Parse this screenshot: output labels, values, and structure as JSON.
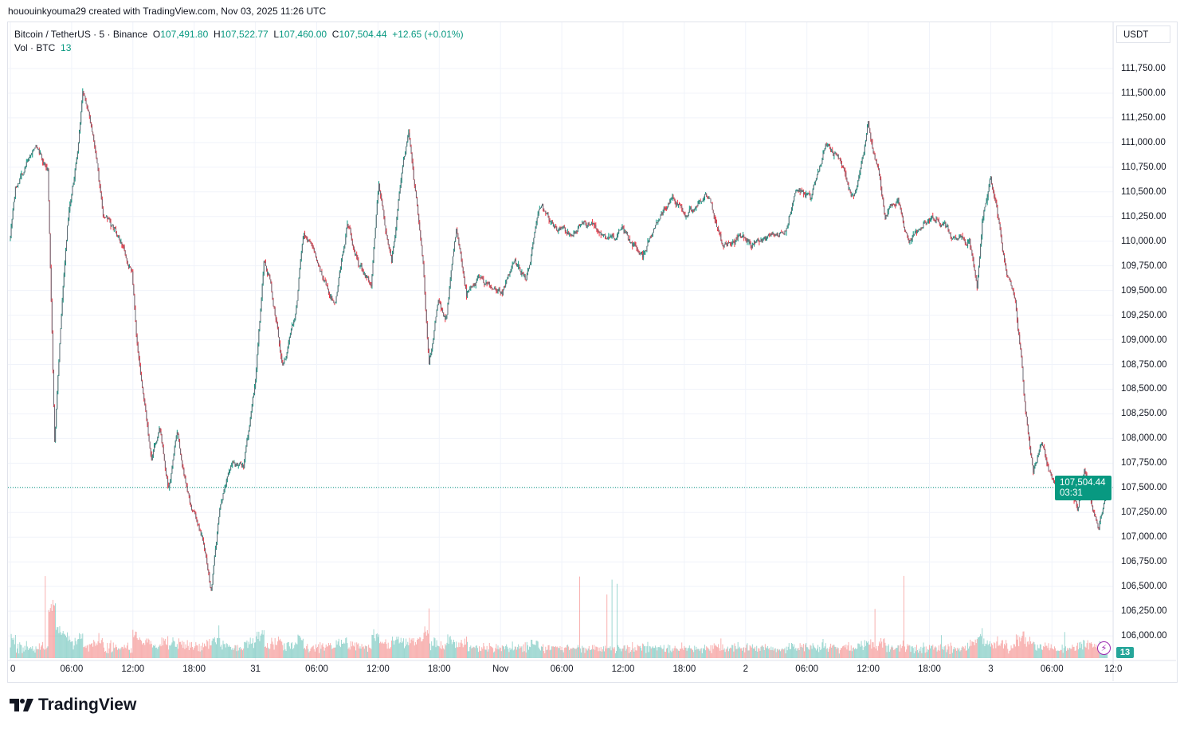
{
  "credit": "hououinkyouma29 created with TradingView.com, Nov 03, 2025 11:26 UTC",
  "legend": {
    "symbol": "Bitcoin / TetherUS · 5 · Binance",
    "o_label": "O",
    "o": "107,491.80",
    "h_label": "H",
    "h": "107,522.77",
    "l_label": "L",
    "l": "107,460.00",
    "c_label": "C",
    "c": "107,504.44",
    "change": "+12.65 (+0.01%)",
    "vol_label": "Vol · BTC",
    "vol": "13"
  },
  "currency": "USDT",
  "last_price": "107,504.44",
  "countdown": "03:31",
  "volume_badge": "13",
  "brand": "TradingView",
  "colors": {
    "up": "#089981",
    "down": "#f23645",
    "body": "#6a6d78",
    "price_line": "#089981",
    "vol_up": "#26a69a",
    "vol_down": "#ef5350"
  },
  "chart_data": {
    "type": "candlestick",
    "interval": "5",
    "ylim": [
      105850,
      111900
    ],
    "last": 107504.44,
    "grid": true,
    "y_ticks": [
      "111,750.00",
      "111,500.00",
      "111,250.00",
      "111,000.00",
      "110,750.00",
      "110,500.00",
      "110,250.00",
      "110,000.00",
      "109,750.00",
      "109,500.00",
      "109,250.00",
      "109,000.00",
      "108,750.00",
      "108,500.00",
      "108,250.00",
      "108,000.00",
      "107,750.00",
      "107,500.00",
      "107,250.00",
      "107,000.00",
      "106,750.00",
      "106,500.00",
      "106,250.00",
      "106,000.00"
    ],
    "x_ticks": [
      "0",
      "06:00",
      "12:00",
      "18:00",
      "31",
      "06:00",
      "12:00",
      "18:00",
      "Nov",
      "06:00",
      "12:00",
      "18:00",
      "2",
      "06:00",
      "12:00",
      "18:00",
      "3",
      "06:00",
      "12:0"
    ],
    "price_path": [
      [
        "10-30 00:00",
        110020
      ],
      [
        "10-30 00:30",
        110506
      ],
      [
        "10-30 02:30",
        110950
      ],
      [
        "10-30 03:40",
        110750
      ],
      [
        "10-30 04:20",
        108000
      ],
      [
        "10-30 04:50",
        108970
      ],
      [
        "10-30 05:35",
        110185
      ],
      [
        "10-30 06:35",
        110910
      ],
      [
        "10-30 07:05",
        111560
      ],
      [
        "10-30 07:40",
        111315
      ],
      [
        "10-30 08:25",
        110830
      ],
      [
        "10-30 09:05",
        110265
      ],
      [
        "10-30 10:40",
        110020
      ],
      [
        "10-30 11:55",
        109700
      ],
      [
        "10-30 12:20",
        109050
      ],
      [
        "10-30 13:00",
        108490
      ],
      [
        "10-30 13:50",
        107760
      ],
      [
        "10-30 14:35",
        108165
      ],
      [
        "10-30 15:30",
        107520
      ],
      [
        "10-30 16:20",
        108085
      ],
      [
        "10-30 17:05",
        107600
      ],
      [
        "10-30 17:40",
        107275
      ],
      [
        "10-30 18:55",
        106955
      ],
      [
        "10-30 19:40",
        106430
      ],
      [
        "10-30 20:30",
        107275
      ],
      [
        "10-30 21:35",
        107760
      ],
      [
        "10-30 22:50",
        107680
      ],
      [
        "10-31 00:00",
        108570
      ],
      [
        "10-31 00:50",
        109780
      ],
      [
        "10-31 01:30",
        109620
      ],
      [
        "10-31 02:40",
        108730
      ],
      [
        "10-31 03:55",
        109215
      ],
      [
        "10-31 04:40",
        110100
      ],
      [
        "10-31 06:10",
        109700
      ],
      [
        "10-31 07:50",
        109375
      ],
      [
        "10-31 09:00",
        110185
      ],
      [
        "10-31 10:05",
        109780
      ],
      [
        "10-31 11:20",
        109540
      ],
      [
        "10-31 12:05",
        110590
      ],
      [
        "10-31 13:20",
        109780
      ],
      [
        "10-31 14:00",
        110425
      ],
      [
        "10-31 15:00",
        111070
      ],
      [
        "10-31 15:35",
        110506
      ],
      [
        "10-31 16:25",
        109780
      ],
      [
        "10-31 17:00",
        108730
      ],
      [
        "10-31 17:55",
        109375
      ],
      [
        "10-31 18:40",
        109215
      ],
      [
        "10-31 19:40",
        110100
      ],
      [
        "10-31 20:40",
        109455
      ],
      [
        "10-31 21:55",
        109620
      ],
      [
        "11-01 00:10",
        109455
      ],
      [
        "11-01 01:25",
        109780
      ],
      [
        "11-01 02:30",
        109620
      ],
      [
        "11-01 03:20",
        110100
      ],
      [
        "11-01 04:05",
        110345
      ],
      [
        "11-01 05:40",
        110100
      ],
      [
        "11-01 07:10",
        110100
      ],
      [
        "11-01 08:50",
        110185
      ],
      [
        "11-01 10:20",
        110020
      ],
      [
        "11-01 11:55",
        110100
      ],
      [
        "11-01 13:55",
        109860
      ],
      [
        "11-01 15:00",
        110100
      ],
      [
        "11-01 16:35",
        110425
      ],
      [
        "11-01 18:10",
        110265
      ],
      [
        "11-01 20:30",
        110425
      ],
      [
        "11-01 21:40",
        109940
      ],
      [
        "11-01 23:20",
        110060
      ],
      [
        "11-02 00:50",
        109980
      ],
      [
        "11-02 02:25",
        110020
      ],
      [
        "11-02 03:55",
        110100
      ],
      [
        "11-02 04:55",
        110590
      ],
      [
        "11-02 06:20",
        110425
      ],
      [
        "11-02 07:50",
        110950
      ],
      [
        "11-02 09:00",
        110870
      ],
      [
        "11-02 09:50",
        110590
      ],
      [
        "11-02 10:35",
        110425
      ],
      [
        "11-02 12:00",
        111190
      ],
      [
        "11-02 12:55",
        110750
      ],
      [
        "11-02 13:40",
        110265
      ],
      [
        "11-02 14:55",
        110425
      ],
      [
        "11-02 16:00",
        109940
      ],
      [
        "11-02 17:35",
        110185
      ],
      [
        "11-02 18:50",
        110265
      ],
      [
        "11-02 20:20",
        110020
      ],
      [
        "11-02 21:55",
        110020
      ],
      [
        "11-02 22:40",
        109540
      ],
      [
        "11-02 23:10",
        110185
      ],
      [
        "11-03 00:00",
        110670
      ],
      [
        "11-03 00:50",
        110185
      ],
      [
        "11-03 01:35",
        109620
      ],
      [
        "11-03 02:25",
        109375
      ],
      [
        "11-03 03:00",
        108810
      ],
      [
        "11-03 03:25",
        108245
      ],
      [
        "11-03 04:10",
        107680
      ],
      [
        "11-03 05:00",
        107920
      ],
      [
        "11-03 06:05",
        107520
      ],
      [
        "11-03 07:20",
        107600
      ],
      [
        "11-03 08:30",
        107275
      ],
      [
        "11-03 09:10",
        107680
      ],
      [
        "11-03 10:00",
        107275
      ],
      [
        "11-03 10:35",
        107115
      ],
      [
        "11-03 11:25",
        107504.44
      ]
    ]
  }
}
